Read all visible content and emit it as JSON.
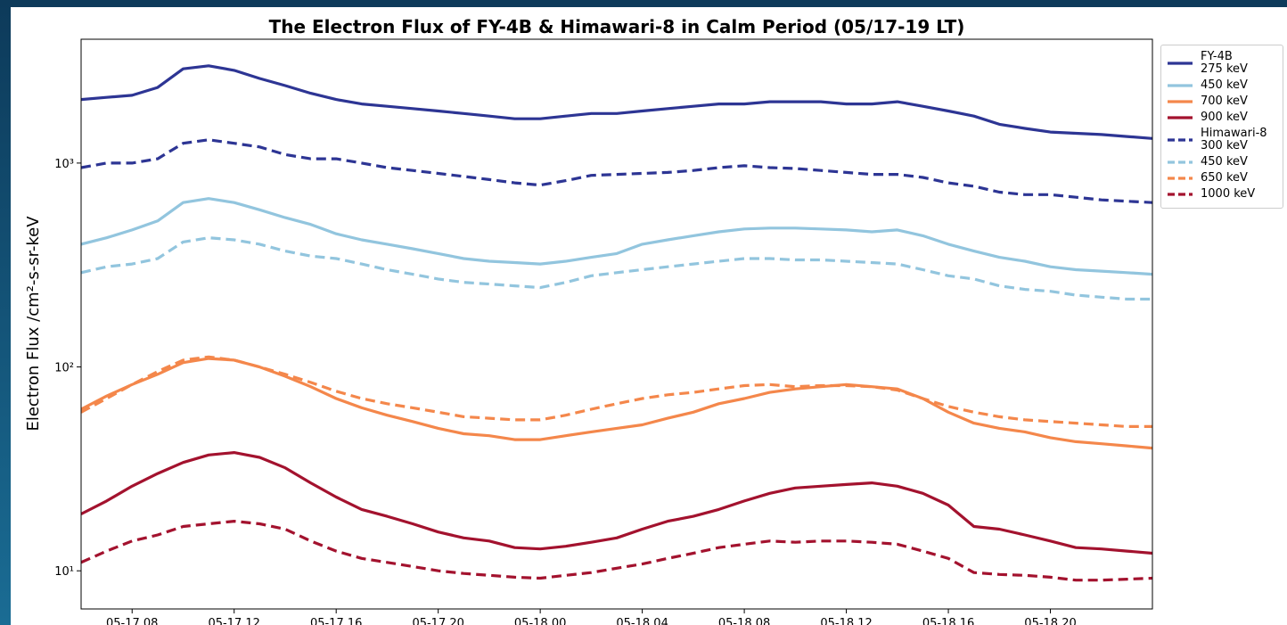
{
  "chart_data": {
    "type": "line",
    "title": "The Electron Flux of FY-4B & Himawari-8 in Calm Period (05/17-19 LT)",
    "y_label": "Electron Flux /cm²-s-sr-keV",
    "log_y": true,
    "x": [
      "05-17 06",
      "05-17 07",
      "05-17 08",
      "05-17 09",
      "05-17 10",
      "05-17 11",
      "05-17 12",
      "05-17 13",
      "05-17 14",
      "05-17 15",
      "05-17 16",
      "05-17 17",
      "05-17 18",
      "05-17 19",
      "05-17 20",
      "05-17 21",
      "05-17 22",
      "05-17 23",
      "05-18 00",
      "05-18 01",
      "05-18 02",
      "05-18 03",
      "05-18 04",
      "05-18 05",
      "05-18 06",
      "05-18 07",
      "05-18 08",
      "05-18 09",
      "05-18 10",
      "05-18 11",
      "05-18 12",
      "05-18 13",
      "05-18 14",
      "05-18 15",
      "05-18 16",
      "05-18 17",
      "05-18 18",
      "05-18 19",
      "05-18 20",
      "05-18 21",
      "05-18 22",
      "05-18 23",
      "05-19 00"
    ],
    "xlim": [
      "05-17 06",
      "05-19 00"
    ],
    "xticks": [
      "05-17 08",
      "05-17 12",
      "05-17 16",
      "05-17 20",
      "05-18 00",
      "05-18 04",
      "05-18 08",
      "05-18 12",
      "05-18 16",
      "05-18 20"
    ],
    "ylim": [
      6.5,
      4050
    ],
    "yticks": [
      {
        "value": 10,
        "label": "10¹"
      },
      {
        "value": 100,
        "label": "10²"
      },
      {
        "value": 1000,
        "label": "10³"
      }
    ],
    "series": [
      {
        "name": "FY-4B\n275 keV",
        "color": "#2d3594",
        "linestyle": "solid",
        "values": [
          2050,
          2100,
          2150,
          2350,
          2900,
          3000,
          2850,
          2600,
          2400,
          2200,
          2050,
          1950,
          1900,
          1850,
          1800,
          1750,
          1700,
          1650,
          1650,
          1700,
          1750,
          1750,
          1800,
          1850,
          1900,
          1950,
          1950,
          2000,
          2000,
          2000,
          1950,
          1950,
          2000,
          1900,
          1800,
          1700,
          1550,
          1480,
          1420,
          1400,
          1380,
          1350,
          1320
        ]
      },
      {
        "name": "450 keV",
        "color": "#92c5de",
        "linestyle": "solid",
        "values": [
          400,
          430,
          470,
          520,
          640,
          670,
          640,
          590,
          540,
          500,
          450,
          420,
          400,
          380,
          360,
          340,
          330,
          325,
          320,
          330,
          345,
          360,
          400,
          420,
          440,
          460,
          475,
          480,
          480,
          475,
          470,
          460,
          470,
          440,
          400,
          370,
          345,
          330,
          310,
          300,
          295,
          290,
          285
        ]
      },
      {
        "name": "700 keV",
        "color": "#f4874b",
        "linestyle": "solid",
        "values": [
          62,
          72,
          82,
          92,
          105,
          110,
          108,
          100,
          90,
          80,
          70,
          63,
          58,
          54,
          50,
          47,
          46,
          44,
          44,
          46,
          48,
          50,
          52,
          56,
          60,
          66,
          70,
          75,
          78,
          80,
          82,
          80,
          78,
          70,
          60,
          53,
          50,
          48,
          45,
          43,
          42,
          41,
          40
        ]
      },
      {
        "name": "900 keV",
        "color": "#a3122e",
        "linestyle": "solid",
        "values": [
          19,
          22,
          26,
          30,
          34,
          37,
          38,
          36,
          32,
          27,
          23,
          20,
          18.5,
          17,
          15.5,
          14.5,
          14,
          13,
          12.8,
          13.2,
          13.8,
          14.5,
          16,
          17.5,
          18.5,
          20,
          22,
          24,
          25.5,
          26,
          26.5,
          27,
          26,
          24,
          21,
          16.5,
          16,
          15,
          14,
          13,
          12.8,
          12.5,
          12.2
        ]
      },
      {
        "name": "Himawari-8\n300 keV",
        "color": "#2d3594",
        "linestyle": "dashed",
        "values": [
          950,
          1000,
          1000,
          1050,
          1250,
          1300,
          1250,
          1200,
          1100,
          1050,
          1050,
          1000,
          950,
          920,
          890,
          860,
          830,
          800,
          780,
          820,
          870,
          880,
          890,
          900,
          920,
          950,
          970,
          950,
          940,
          920,
          900,
          880,
          880,
          850,
          800,
          770,
          720,
          700,
          700,
          680,
          660,
          650,
          640
        ]
      },
      {
        "name": "450 keV",
        "color": "#92c5de",
        "linestyle": "dashed",
        "values": [
          290,
          310,
          320,
          340,
          410,
          430,
          420,
          400,
          370,
          350,
          340,
          320,
          300,
          285,
          270,
          260,
          255,
          250,
          245,
          260,
          280,
          290,
          300,
          310,
          320,
          330,
          340,
          340,
          335,
          335,
          330,
          325,
          320,
          300,
          280,
          270,
          250,
          240,
          235,
          225,
          220,
          215,
          215
        ]
      },
      {
        "name": "650 keV",
        "color": "#f4874b",
        "linestyle": "dashed",
        "values": [
          60,
          70,
          82,
          95,
          108,
          112,
          108,
          100,
          92,
          84,
          76,
          70,
          66,
          63,
          60,
          57,
          56,
          55,
          55,
          58,
          62,
          66,
          70,
          73,
          75,
          78,
          81,
          82,
          80,
          81,
          81,
          80,
          77,
          70,
          64,
          60,
          57,
          55,
          54,
          53,
          52,
          51,
          51
        ]
      },
      {
        "name": "1000 keV",
        "color": "#a3122e",
        "linestyle": "dashed",
        "values": [
          11,
          12.5,
          14,
          15,
          16.5,
          17,
          17.5,
          17,
          16,
          14,
          12.5,
          11.5,
          11,
          10.5,
          10,
          9.7,
          9.5,
          9.3,
          9.2,
          9.5,
          9.8,
          10.3,
          10.8,
          11.5,
          12.2,
          13,
          13.5,
          14,
          13.8,
          14,
          14,
          13.8,
          13.5,
          12.5,
          11.5,
          9.8,
          9.6,
          9.5,
          9.3,
          9,
          9,
          9.1,
          9.2
        ]
      }
    ]
  }
}
